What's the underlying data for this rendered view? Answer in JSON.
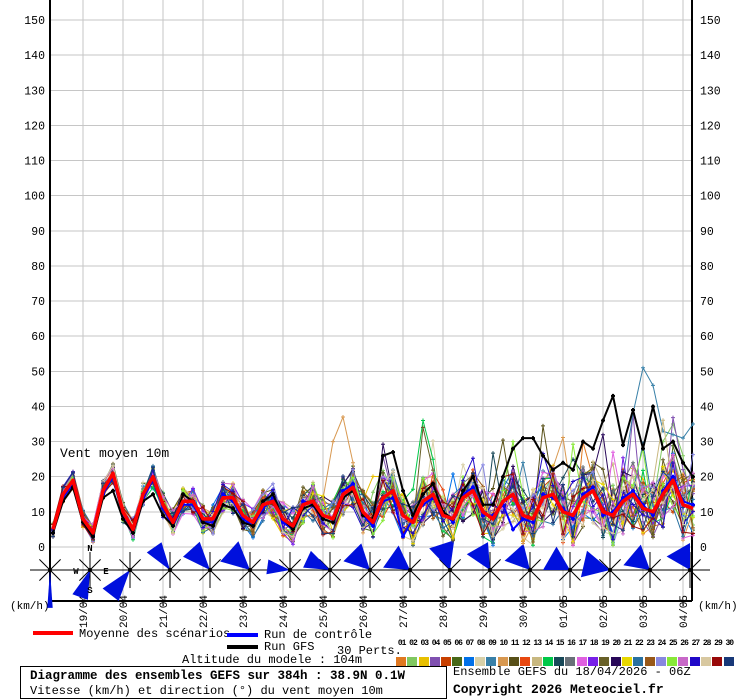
{
  "chart": {
    "inplot_label": "Vent moyen 10m",
    "unit_label": "(km/h)",
    "compass": [
      "N",
      "W",
      "E",
      "S"
    ],
    "y_ticks": [
      0,
      10,
      20,
      30,
      40,
      50,
      60,
      70,
      80,
      90,
      100,
      110,
      120,
      130,
      140,
      150
    ],
    "x_tick_labels": [
      "19/04",
      "20/04",
      "21/04",
      "22/04",
      "23/04",
      "24/04",
      "25/04",
      "26/04",
      "27/04",
      "28/04",
      "29/04",
      "30/04",
      "01/05",
      "02/05",
      "03/05",
      "04/05"
    ],
    "grid_color": "#c6c6c6",
    "axis_color": "#000000",
    "arrow_color": "#0010dd"
  },
  "chart_data": {
    "type": "line",
    "title": "Diagramme des ensembles GEFS sur 384h : 38.9N 0.1W",
    "subtitle": "Vitesse (km/h) et direction (°) du vent moyen 10m",
    "x_start": "18/04 06Z",
    "x_step_hours": 6,
    "n_points": 65,
    "ylim": [
      0,
      155
    ],
    "legend_position": "bottom",
    "grid": true,
    "series": [
      {
        "name": "Moyenne des scénarios",
        "color": "#ff0000",
        "width": 3.5,
        "values": [
          5,
          15,
          19,
          8,
          4,
          16,
          21,
          10,
          5,
          15,
          20,
          12,
          7,
          13,
          13,
          8,
          8,
          14,
          14,
          9,
          7,
          12,
          13,
          8,
          6,
          12,
          13,
          9,
          8,
          15,
          17,
          10,
          7,
          14,
          16,
          9,
          7,
          13,
          15,
          9,
          8,
          14,
          16,
          10,
          8,
          13,
          15,
          9,
          8,
          14,
          15,
          10,
          9,
          14,
          16,
          10,
          9,
          13,
          15,
          11,
          10,
          15,
          19,
          12,
          11
        ]
      },
      {
        "name": "Run de contrôle",
        "color": "#0000ff",
        "width": 2,
        "values": [
          4,
          14,
          18,
          7,
          3,
          15,
          20,
          9,
          5,
          14,
          19,
          11,
          6,
          12,
          12,
          7,
          7,
          15,
          13,
          8,
          6,
          11,
          14,
          7,
          5,
          13,
          12,
          8,
          7,
          16,
          18,
          9,
          6,
          13,
          14,
          3,
          8,
          12,
          14,
          10,
          7,
          15,
          17,
          9,
          9,
          12,
          5,
          8,
          7,
          15,
          14,
          11,
          8,
          15,
          17,
          9,
          10,
          14,
          16,
          12,
          9,
          16,
          20,
          13,
          12
        ]
      },
      {
        "name": "Run GFS",
        "color": "#000000",
        "width": 2,
        "values": [
          4,
          13,
          17,
          7,
          3,
          14,
          16,
          8,
          4,
          13,
          15,
          9,
          6,
          15,
          13,
          7,
          6,
          12,
          11,
          7,
          6,
          13,
          15,
          8,
          5,
          11,
          12,
          8,
          7,
          14,
          16,
          9,
          8,
          26,
          27,
          16,
          9,
          15,
          18,
          10,
          8,
          16,
          20,
          12,
          12,
          20,
          28,
          31,
          31,
          26,
          22,
          24,
          22,
          30,
          28,
          36,
          43,
          29,
          39,
          28,
          40,
          28,
          30,
          24,
          20
        ]
      }
    ],
    "perturbations": {
      "count": 30,
      "numbers": [
        "01",
        "02",
        "03",
        "04",
        "05",
        "06",
        "07",
        "08",
        "09",
        "10",
        "11",
        "12",
        "13",
        "14",
        "15",
        "16",
        "17",
        "18",
        "19",
        "20",
        "21",
        "22",
        "23",
        "24",
        "25",
        "26",
        "27",
        "28",
        "29",
        "30"
      ],
      "colors": [
        "#e07820",
        "#80c860",
        "#e8c000",
        "#8050b0",
        "#c84000",
        "#486818",
        "#0070e8",
        "#d8d0a8",
        "#3880a8",
        "#d89850",
        "#585018",
        "#e84810",
        "#c8b880",
        "#00c848",
        "#184858",
        "#687078",
        "#e060e0",
        "#7820e8",
        "#686028",
        "#280858",
        "#e8d800",
        "#2870a0",
        "#985818",
        "#8888e0",
        "#88e838",
        "#c868c8",
        "#2008c8",
        "#d8c8a0",
        "#980808",
        "#183878"
      ],
      "spread_base": 2.2,
      "spread_growth": 0.13,
      "overrides": {
        "09": {
          "58": 38,
          "59": 51,
          "60": 46,
          "61": 33,
          "62": 32,
          "63": 31,
          "64": 35
        },
        "10": {
          "28": 30,
          "29": 37,
          "30": 24
        },
        "14": {
          "37": 36,
          "38": 25
        },
        "02": {
          "61": 30,
          "62": 35,
          "63": 26
        },
        "25": {
          "46": 30,
          "59": 28
        },
        "19": {
          "37": 34
        }
      }
    },
    "wind_arrows": [
      {
        "dir": 180,
        "half": 4,
        "len": 38
      },
      {
        "dir": 200,
        "half": 16,
        "len": 30
      },
      {
        "dir": 218,
        "half": 18,
        "len": 33
      },
      {
        "dir": 325,
        "half": 18,
        "len": 29
      },
      {
        "dir": 318,
        "half": 22,
        "len": 30
      },
      {
        "dir": 312,
        "half": 26,
        "len": 31
      },
      {
        "dir": 278,
        "half": 18,
        "len": 24
      },
      {
        "dir": 295,
        "half": 20,
        "len": 27
      },
      {
        "dir": 315,
        "half": 27,
        "len": 28
      },
      {
        "dir": 305,
        "half": 30,
        "len": 27
      },
      {
        "dir": 342,
        "half": 26,
        "len": 30
      },
      {
        "dir": 330,
        "half": 26,
        "len": 28
      },
      {
        "dir": 318,
        "half": 28,
        "len": 27
      },
      {
        "dir": 300,
        "half": 30,
        "len": 27
      },
      {
        "dir": 283,
        "half": 27,
        "len": 30
      },
      {
        "dir": 310,
        "half": 30,
        "len": 27
      },
      {
        "dir": 330,
        "half": 30,
        "len": 27
      }
    ]
  },
  "legend": {
    "mean_label": "Moyenne des scénarios",
    "control_label": "Run de contrôle",
    "gfs_label": "Run GFS",
    "perts_label": "30 Perts.",
    "mean_color": "#ff0000",
    "control_color": "#0000ff",
    "gfs_color": "#000000"
  },
  "altitude_label": "Altitude du modele : 104m",
  "footer": {
    "title": "Diagramme des ensembles GEFS sur 384h : 38.9N 0.1W",
    "subtitle": "Vitesse (km/h) et direction (°) du vent moyen 10m",
    "run_info": "Ensemble GEFS du 18/04/2026 - 06Z",
    "copyright": "Copyright 2026 Meteociel.fr"
  }
}
